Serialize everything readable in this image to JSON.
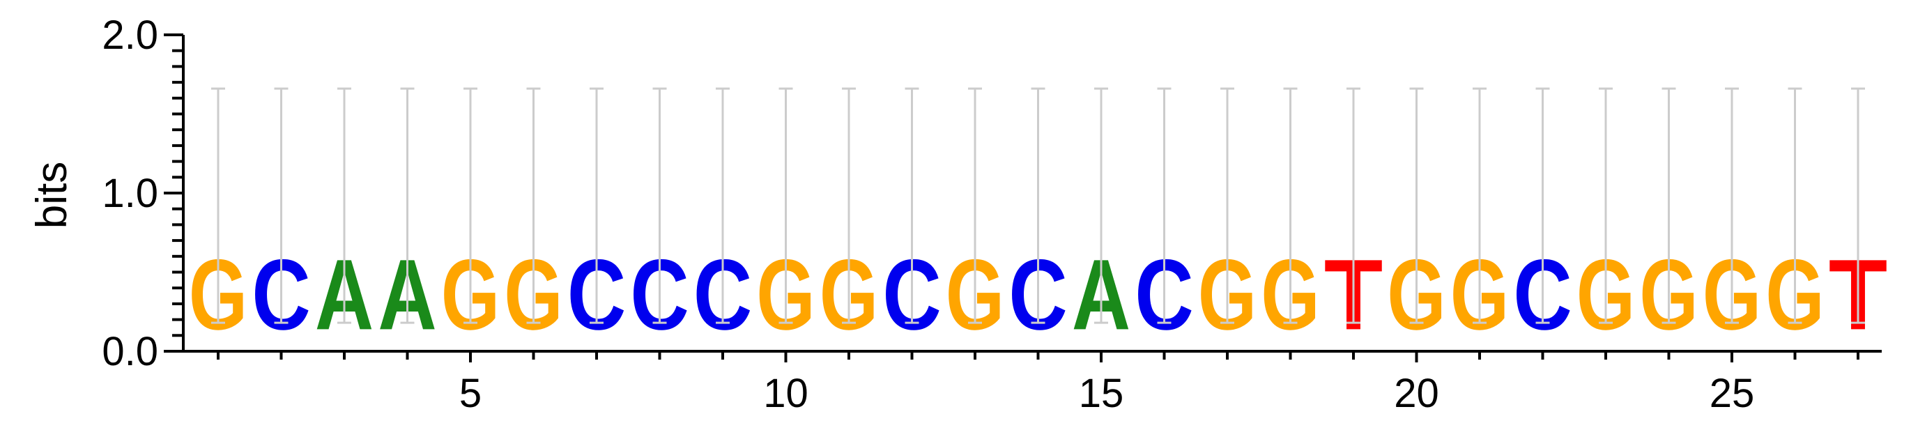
{
  "chart_data": {
    "type": "sequence-logo",
    "ylabel": "bits",
    "ylim": [
      0,
      2
    ],
    "y_ticks": [
      "0.0",
      "1.0",
      "2.0"
    ],
    "x_tick_labels": [
      {
        "x": 5,
        "label": "5"
      },
      {
        "x": 10,
        "label": "10"
      },
      {
        "x": 15,
        "label": "15"
      },
      {
        "x": 20,
        "label": "20"
      },
      {
        "x": 25,
        "label": "25"
      }
    ],
    "sequence": [
      "G",
      "C",
      "A",
      "A",
      "G",
      "G",
      "C",
      "C",
      "C",
      "G",
      "G",
      "C",
      "G",
      "C",
      "A",
      "C",
      "G",
      "G",
      "T",
      "G",
      "G",
      "C",
      "G",
      "G",
      "G",
      "G",
      "T"
    ],
    "information_bits": 0.71,
    "error_bar": {
      "low": 0.18,
      "high": 1.66
    },
    "colors": {
      "A": "#1a8a1a",
      "C": "#0000ee",
      "G": "#ffa500",
      "T": "#ff0000"
    },
    "error_bar_color": "#cccccc"
  }
}
